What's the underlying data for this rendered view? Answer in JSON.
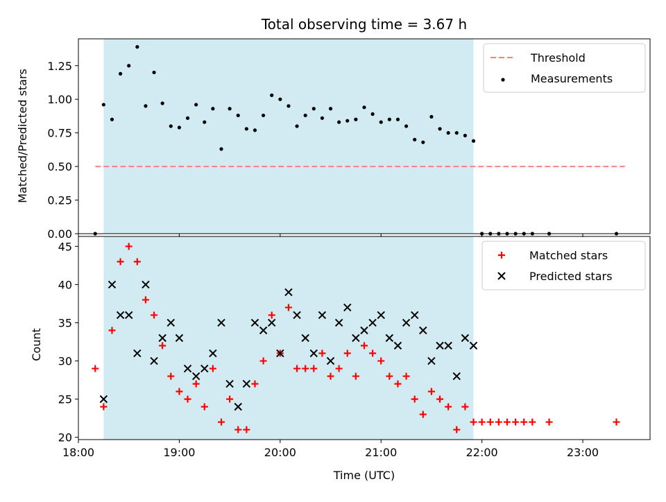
{
  "figure": {
    "title": "Total observing time = 3.67 h",
    "xlabel": "Time (UTC)"
  },
  "colors": {
    "shade": "#add8e6",
    "threshold": "#ff7f7f",
    "matched": "#ff0000",
    "predicted": "#000000",
    "measurement": "#000000"
  },
  "chart_data": [
    {
      "type": "scatter",
      "ylabel": "Matched/Predicted stars",
      "xlim": [
        "18:00",
        "23:40"
      ],
      "ylim": [
        0,
        1.45
      ],
      "yticks": [
        0.0,
        0.25,
        0.5,
        0.75,
        1.0,
        1.25
      ],
      "ytick_labels": [
        "0.00",
        "0.25",
        "0.50",
        "0.75",
        "1.00",
        "1.25"
      ],
      "xticks": [
        "18:00",
        "19:00",
        "20:00",
        "21:00",
        "22:00",
        "23:00"
      ],
      "shaded_span": [
        "18:15",
        "21:55"
      ],
      "threshold": {
        "label": "Threshold",
        "value": 0.5,
        "x": [
          "18:10",
          "23:25"
        ]
      },
      "legend": {
        "placement": "upper right",
        "entries": [
          "Threshold",
          "Measurements"
        ]
      },
      "series": [
        {
          "name": "Measurements",
          "x": [
            "18:10",
            "18:15",
            "18:20",
            "18:25",
            "18:30",
            "18:35",
            "18:40",
            "18:45",
            "18:50",
            "18:55",
            "19:00",
            "19:05",
            "19:10",
            "19:15",
            "19:20",
            "19:25",
            "19:30",
            "19:35",
            "19:40",
            "19:45",
            "19:50",
            "19:55",
            "20:00",
            "20:05",
            "20:10",
            "20:15",
            "20:20",
            "20:25",
            "20:30",
            "20:35",
            "20:40",
            "20:45",
            "20:50",
            "20:55",
            "21:00",
            "21:05",
            "21:10",
            "21:15",
            "21:20",
            "21:25",
            "21:30",
            "21:35",
            "21:40",
            "21:45",
            "21:50",
            "21:55",
            "22:00",
            "22:05",
            "22:10",
            "22:15",
            "22:20",
            "22:25",
            "22:30",
            "22:40",
            "23:20"
          ],
          "y": [
            0.0,
            0.96,
            0.85,
            1.19,
            1.25,
            1.39,
            0.95,
            1.2,
            0.97,
            0.8,
            0.79,
            0.86,
            0.96,
            0.83,
            0.93,
            0.63,
            0.93,
            0.88,
            0.78,
            0.77,
            0.88,
            1.03,
            1.0,
            0.95,
            0.8,
            0.88,
            0.93,
            0.86,
            0.93,
            0.83,
            0.84,
            0.85,
            0.94,
            0.89,
            0.83,
            0.85,
            0.85,
            0.8,
            0.7,
            0.68,
            0.87,
            0.78,
            0.75,
            0.75,
            0.73,
            0.69,
            0.0,
            0.0,
            0.0,
            0.0,
            0.0,
            0.0,
            0.0,
            0.0,
            0.0
          ]
        }
      ]
    },
    {
      "type": "scatter",
      "ylabel": "Count",
      "xlim": [
        "18:00",
        "23:40"
      ],
      "ylim": [
        19.7,
        46.3
      ],
      "yticks": [
        20,
        25,
        30,
        35,
        40,
        45
      ],
      "ytick_labels": [
        "20",
        "25",
        "30",
        "35",
        "40",
        "45"
      ],
      "xticks": [
        "18:00",
        "19:00",
        "20:00",
        "21:00",
        "22:00",
        "23:00"
      ],
      "xtick_labels": [
        "18:00",
        "19:00",
        "20:00",
        "21:00",
        "22:00",
        "23:00"
      ],
      "shaded_span": [
        "18:15",
        "21:55"
      ],
      "legend": {
        "placement": "upper right",
        "entries": [
          "Matched stars",
          "Predicted stars"
        ]
      },
      "series": [
        {
          "name": "Matched stars",
          "x": [
            "18:10",
            "18:15",
            "18:20",
            "18:25",
            "18:30",
            "18:35",
            "18:40",
            "18:45",
            "18:50",
            "18:55",
            "19:00",
            "19:05",
            "19:10",
            "19:15",
            "19:20",
            "19:25",
            "19:30",
            "19:35",
            "19:40",
            "19:45",
            "19:50",
            "19:55",
            "20:00",
            "20:05",
            "20:10",
            "20:15",
            "20:20",
            "20:25",
            "20:30",
            "20:35",
            "20:40",
            "20:45",
            "20:50",
            "20:55",
            "21:00",
            "21:05",
            "21:10",
            "21:15",
            "21:20",
            "21:25",
            "21:30",
            "21:35",
            "21:40",
            "21:45",
            "21:50",
            "21:55",
            "22:00",
            "22:05",
            "22:10",
            "22:15",
            "22:20",
            "22:25",
            "22:30",
            "22:40",
            "23:20"
          ],
          "y": [
            29,
            24,
            34,
            43,
            45,
            43,
            38,
            36,
            32,
            28,
            26,
            25,
            27,
            24,
            29,
            22,
            25,
            21,
            21,
            27,
            30,
            36,
            31,
            37,
            29,
            29,
            29,
            31,
            28,
            29,
            31,
            28,
            32,
            31,
            30,
            28,
            27,
            28,
            25,
            23,
            26,
            25,
            24,
            21,
            24,
            22,
            22,
            22,
            22,
            22,
            22,
            22,
            22,
            22,
            22
          ]
        },
        {
          "name": "Predicted stars",
          "x": [
            "18:15",
            "18:20",
            "18:25",
            "18:30",
            "18:35",
            "18:40",
            "18:45",
            "18:50",
            "18:55",
            "19:00",
            "19:05",
            "19:10",
            "19:15",
            "19:20",
            "19:25",
            "19:30",
            "19:35",
            "19:40",
            "19:45",
            "19:50",
            "19:55",
            "20:00",
            "20:05",
            "20:10",
            "20:15",
            "20:20",
            "20:25",
            "20:30",
            "20:35",
            "20:40",
            "20:45",
            "20:50",
            "20:55",
            "21:00",
            "21:05",
            "21:10",
            "21:15",
            "21:20",
            "21:25",
            "21:30",
            "21:35",
            "21:40",
            "21:45",
            "21:50",
            "21:55"
          ],
          "y": [
            25,
            40,
            36,
            36,
            31,
            40,
            30,
            33,
            35,
            33,
            29,
            28,
            29,
            31,
            35,
            27,
            24,
            27,
            35,
            34,
            35,
            31,
            39,
            36,
            33,
            31,
            36,
            30,
            35,
            37,
            33,
            34,
            35,
            36,
            33,
            32,
            35,
            36,
            34,
            30,
            32,
            32,
            28,
            33,
            32
          ]
        }
      ]
    }
  ]
}
